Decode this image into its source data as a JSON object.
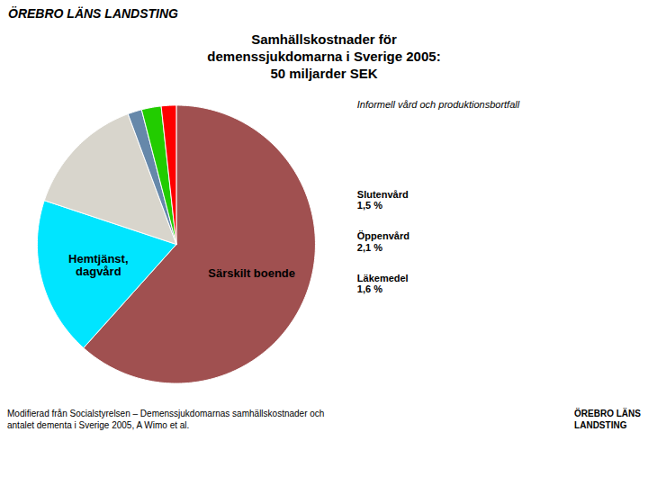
{
  "chart_data": {
    "type": "pie",
    "title": "Samhällskostnader för\ndemenssjukdomarna i Sverige 2005:\n50 miljarder SEK",
    "categories": [
      "Särskilt boende",
      "Hemtjänst,\ndagvård",
      "Informell vård och produktionsbortfall",
      "Slutenvård",
      "Öppenvård",
      "Läkemedel"
    ],
    "values": [
      56.7,
      17.0,
      13.1,
      1.5,
      2.1,
      1.6
    ],
    "colors": [
      "#A05050",
      "#00E5FF",
      "#D8D5CC",
      "#6688AA",
      "#22CC00",
      "#FF0000"
    ],
    "value_labels": [
      null,
      null,
      null,
      "1,5 %",
      "2,1 %",
      "1,6 %"
    ],
    "annotations": [
      "ÖREBRO LÄNS LANDSTING",
      "Modifierad från Socialstyrelsen – Demenssjukdomarnas samhällskostnader och\nantalet dementa i Sverige 2005, A Wimo et al.",
      "ÖREBRO LÄNS",
      "LANDSTING"
    ]
  }
}
